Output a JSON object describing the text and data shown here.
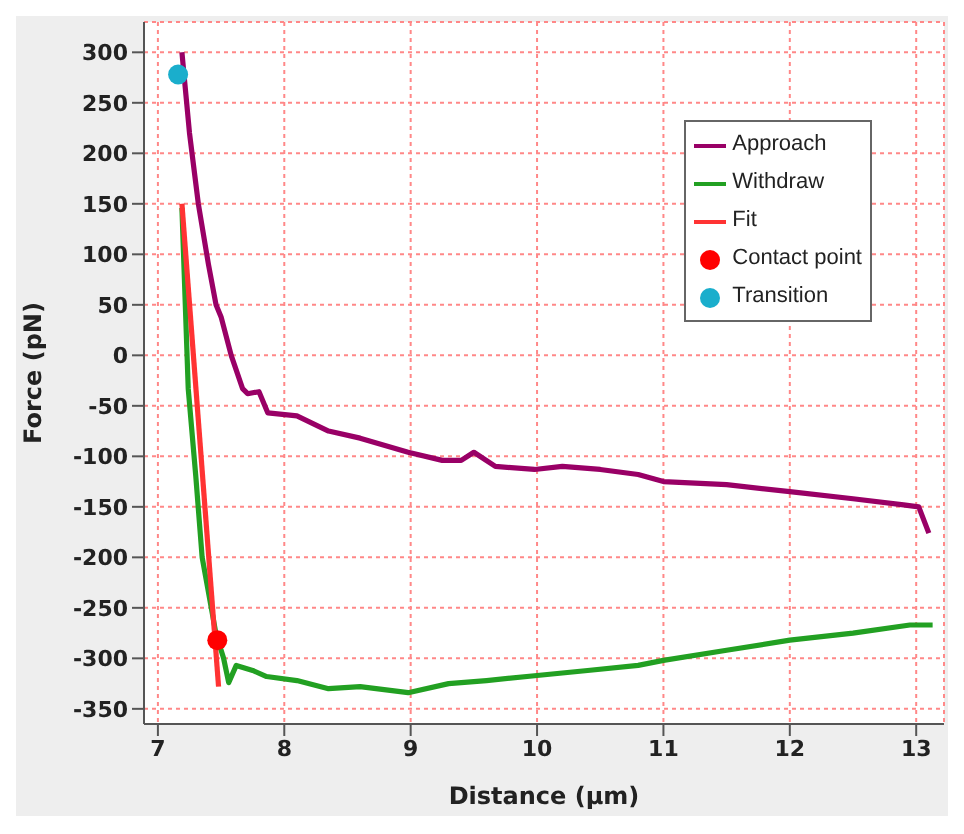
{
  "chart_data": {
    "type": "line",
    "xlabel": "Distance (μm)",
    "ylabel": "Force (pN)",
    "xlim": [
      6.89,
      13.22
    ],
    "ylim": [
      -365,
      330
    ],
    "xticks": [
      7,
      8,
      9,
      10,
      11,
      12,
      13
    ],
    "yticks": [
      -350,
      -300,
      -250,
      -200,
      -150,
      -100,
      -50,
      0,
      50,
      100,
      150,
      200,
      250,
      300
    ],
    "grid": true,
    "legend": "top right",
    "line_style": "solid",
    "marker": "none",
    "series": [
      {
        "name": "Approach",
        "color": "#990066",
        "x": [
          7.19,
          7.25,
          7.32,
          7.4,
          7.46,
          7.5,
          7.58,
          7.67,
          7.71,
          7.8,
          7.87,
          8.1,
          8.35,
          8.6,
          8.98,
          9.25,
          9.4,
          9.5,
          9.67,
          9.98,
          10.2,
          10.5,
          10.8,
          11,
          11.5,
          12,
          12.5,
          12.9,
          13.02,
          13.1
        ],
        "values": [
          300,
          220,
          150,
          90,
          50,
          38,
          0,
          -33,
          -38,
          -36,
          -57,
          -60,
          -75,
          -82,
          -96,
          -104,
          -104,
          -96,
          -110,
          -113,
          -110,
          -113,
          -118,
          -125,
          -128,
          -135,
          -142,
          -148,
          -150,
          -176
        ]
      },
      {
        "name": "Withdraw",
        "color": "#22a022",
        "x": [
          7.19,
          7.24,
          7.3,
          7.35,
          7.46,
          7.52,
          7.56,
          7.62,
          7.75,
          7.86,
          8.1,
          8.35,
          8.6,
          8.98,
          9.3,
          9.6,
          10,
          10.4,
          10.8,
          11,
          11.5,
          12,
          12.5,
          12.95,
          13.13
        ],
        "values": [
          146,
          -33,
          -120,
          -200,
          -276,
          -300,
          -324,
          -307,
          -312,
          -318,
          -322,
          -330,
          -328,
          -334,
          -325,
          -322,
          -317,
          -312,
          -307,
          -302,
          -292,
          -282,
          -275,
          -267,
          -267
        ]
      },
      {
        "name": "Fit",
        "color": "#ff3333",
        "x": [
          7.19,
          7.48
        ],
        "values": [
          150,
          -328
        ]
      },
      {
        "name": "Contact point",
        "type": "scatter",
        "marker": "circle",
        "color": "#ff0000",
        "x": [
          7.47
        ],
        "values": [
          -282
        ]
      },
      {
        "name": "Transition",
        "type": "scatter",
        "marker": "circle",
        "color": "#1aaecc",
        "x": [
          7.16
        ],
        "values": [
          278
        ]
      }
    ]
  }
}
